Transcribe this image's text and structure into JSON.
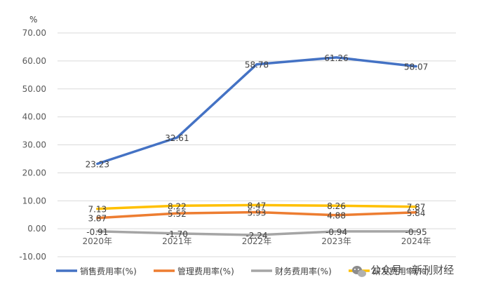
{
  "chart_data": {
    "type": "line",
    "ylabel": "%",
    "categories": [
      "2020年",
      "2021年",
      "2022年",
      "2023年",
      "2024年"
    ],
    "ylim": [
      -10,
      70
    ],
    "yticks": [
      "70.00",
      "60.00",
      "50.00",
      "40.00",
      "30.00",
      "20.00",
      "10.00",
      "0.00",
      "-10.00"
    ],
    "grid": true,
    "legend_position": "bottom",
    "series": [
      {
        "name": "销售费用率(%)",
        "color": "#4472C4",
        "values": [
          23.23,
          32.61,
          58.78,
          61.26,
          58.07
        ],
        "labels": [
          "23.23",
          "32.61",
          "58.78",
          "61.26",
          "58.07"
        ]
      },
      {
        "name": "管理费用率(%)",
        "color": "#ED7D31",
        "values": [
          3.87,
          5.52,
          5.93,
          4.88,
          5.84
        ],
        "labels": [
          "3.87",
          "5.52",
          "5.93",
          "4.88",
          "5.84"
        ]
      },
      {
        "name": "财务费用率(%)",
        "color": "#A5A5A5",
        "values": [
          -0.91,
          -1.7,
          -2.24,
          -0.94,
          -0.95
        ],
        "labels": [
          "-0.91",
          "-1.70",
          "-2.24",
          "-0.94",
          "-0.95"
        ]
      },
      {
        "name": "研发费用率(%)",
        "color": "#FFC000",
        "values": [
          7.13,
          8.22,
          8.47,
          8.26,
          7.87
        ],
        "labels": [
          "7.13",
          "8.22",
          "8.47",
          "8.26",
          "7.87"
        ]
      }
    ]
  },
  "watermark": {
    "text": "公众号 · 新刊财经",
    "icon": "wechat-icon"
  }
}
